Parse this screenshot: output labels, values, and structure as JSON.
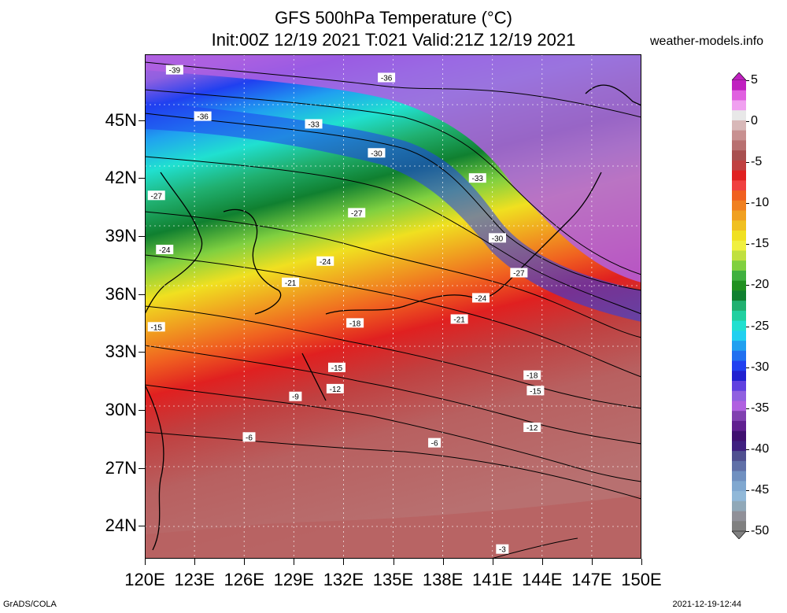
{
  "title": {
    "line1": "GFS 500hPa Temperature (°C)",
    "line2": "Init:00Z 12/19 2021 T:021 Valid:21Z 12/19 2021"
  },
  "site": "weather-models.info",
  "footer": {
    "credit": "GrADS/COLA",
    "timestamp": "2021-12-19-12:44"
  },
  "axes": {
    "lat_labels": [
      {
        "text": "45N",
        "deg": 45
      },
      {
        "text": "42N",
        "deg": 42
      },
      {
        "text": "39N",
        "deg": 39
      },
      {
        "text": "36N",
        "deg": 36
      },
      {
        "text": "33N",
        "deg": 33
      },
      {
        "text": "30N",
        "deg": 30
      },
      {
        "text": "27N",
        "deg": 27
      },
      {
        "text": "24N",
        "deg": 24
      }
    ],
    "lon_labels": [
      {
        "text": "120E",
        "deg": 120
      },
      {
        "text": "123E",
        "deg": 123
      },
      {
        "text": "126E",
        "deg": 126
      },
      {
        "text": "129E",
        "deg": 129
      },
      {
        "text": "132E",
        "deg": 132
      },
      {
        "text": "135E",
        "deg": 135
      },
      {
        "text": "138E",
        "deg": 138
      },
      {
        "text": "141E",
        "deg": 141
      },
      {
        "text": "144E",
        "deg": 144
      },
      {
        "text": "147E",
        "deg": 147
      },
      {
        "text": "150E",
        "deg": 150
      }
    ],
    "lon_range": [
      120,
      150
    ],
    "lat_range": [
      22.3,
      48.4
    ]
  },
  "colorbar": {
    "labels": [
      "5",
      "0",
      "-5",
      "-10",
      "-15",
      "-20",
      "-25",
      "-30",
      "-35",
      "-40",
      "-45",
      "-50"
    ],
    "values": [
      5,
      0,
      -5,
      -10,
      -15,
      -20,
      -25,
      -30,
      -35,
      -40,
      -45,
      -50
    ],
    "colors": [
      "#c020c0",
      "#e060e0",
      "#f0a0f0",
      "#e8e8e8",
      "#d8b8b8",
      "#c89090",
      "#b87070",
      "#a85050",
      "#c04040",
      "#e02020",
      "#f04040",
      "#f06020",
      "#f08020",
      "#f0a020",
      "#f0c020",
      "#f0e020",
      "#f0f040",
      "#c0e040",
      "#80d040",
      "#40b040",
      "#209020",
      "#108030",
      "#20b070",
      "#20d0a0",
      "#20e0d0",
      "#20d0f0",
      "#20a0f0",
      "#2070f0",
      "#2040f0",
      "#2020d0",
      "#6040e0",
      "#9060e0",
      "#b060e0",
      "#8040b0",
      "#602090",
      "#401070",
      "#402080",
      "#505090",
      "#6070a8",
      "#7090c0",
      "#80a8d0",
      "#90b8d8",
      "#90a8b8",
      "#909098",
      "#808080"
    ]
  },
  "contour_labels": [
    {
      "text": "-39",
      "lon": 121.8,
      "lat": 47.6
    },
    {
      "text": "-36",
      "lon": 123.5,
      "lat": 45.2
    },
    {
      "text": "-36",
      "lon": 134.6,
      "lat": 47.2
    },
    {
      "text": "-33",
      "lon": 130.2,
      "lat": 44.8
    },
    {
      "text": "-33",
      "lon": 140.1,
      "lat": 42.0
    },
    {
      "text": "-30",
      "lon": 134.0,
      "lat": 43.3
    },
    {
      "text": "-30",
      "lon": 141.3,
      "lat": 38.9
    },
    {
      "text": "-27",
      "lon": 120.7,
      "lat": 41.1
    },
    {
      "text": "-27",
      "lon": 132.8,
      "lat": 40.2
    },
    {
      "text": "-27",
      "lon": 142.6,
      "lat": 37.1
    },
    {
      "text": "-24",
      "lon": 121.2,
      "lat": 38.3
    },
    {
      "text": "-24",
      "lon": 130.9,
      "lat": 37.7
    },
    {
      "text": "-24",
      "lon": 140.3,
      "lat": 35.8
    },
    {
      "text": "-21",
      "lon": 128.8,
      "lat": 36.6
    },
    {
      "text": "-21",
      "lon": 139.0,
      "lat": 34.7
    },
    {
      "text": "-18",
      "lon": 132.7,
      "lat": 34.5
    },
    {
      "text": "-18",
      "lon": 143.4,
      "lat": 31.8
    },
    {
      "text": "-15",
      "lon": 120.7,
      "lat": 34.3
    },
    {
      "text": "-15",
      "lon": 131.6,
      "lat": 32.2
    },
    {
      "text": "-15",
      "lon": 143.6,
      "lat": 31.0
    },
    {
      "text": "-12",
      "lon": 131.5,
      "lat": 31.1
    },
    {
      "text": "-12",
      "lon": 143.4,
      "lat": 29.1
    },
    {
      "text": "-9",
      "lon": 129.1,
      "lat": 30.7
    },
    {
      "text": "-6",
      "lon": 126.3,
      "lat": 28.6
    },
    {
      "text": "-6",
      "lon": 137.5,
      "lat": 28.3
    },
    {
      "text": "-3",
      "lon": 141.6,
      "lat": 22.8
    }
  ]
}
